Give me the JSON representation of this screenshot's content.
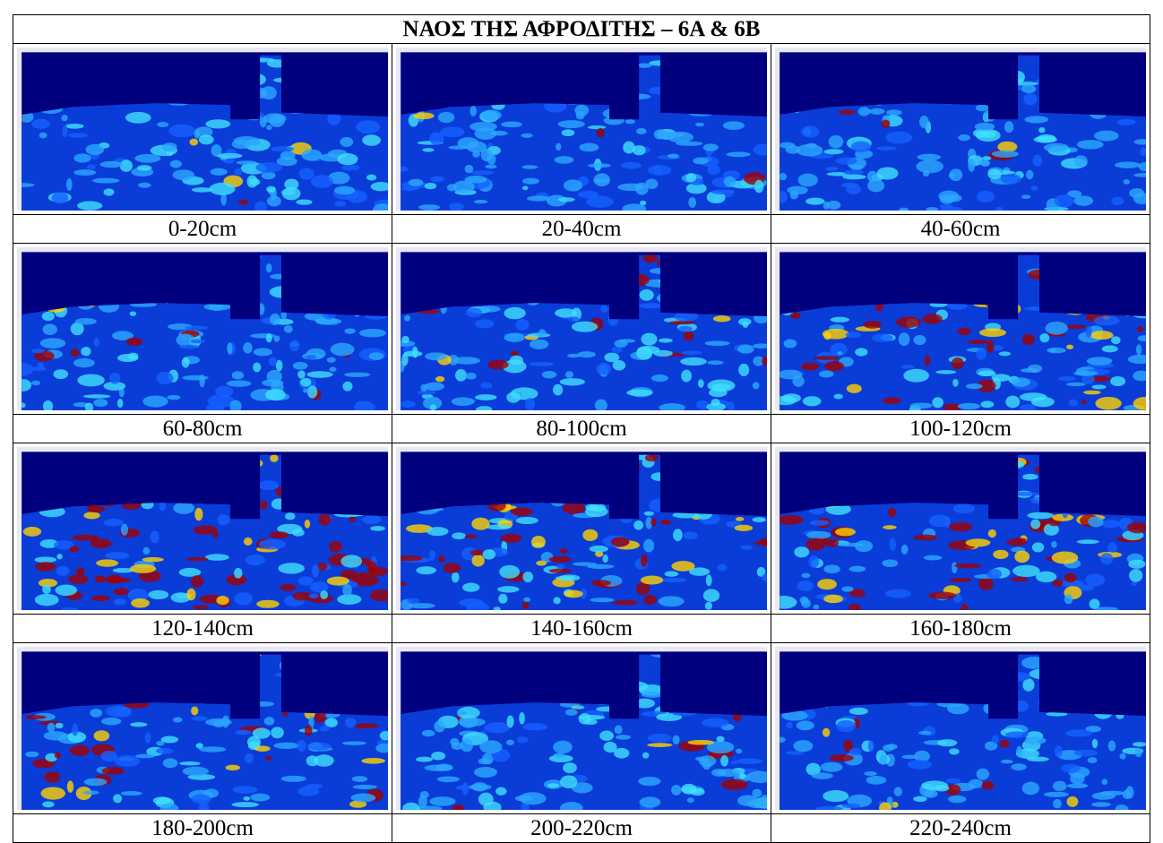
{
  "title": "ΝΑΟΣ ΤΗΣ ΑΦΡΟΔΙΤΗΣ – 6Α & 6Β",
  "slices": [
    {
      "label": "0-20cm"
    },
    {
      "label": "20-40cm"
    },
    {
      "label": "40-60cm"
    },
    {
      "label": "60-80cm"
    },
    {
      "label": "80-100cm"
    },
    {
      "label": "100-120cm"
    },
    {
      "label": "120-140cm"
    },
    {
      "label": "140-160cm"
    },
    {
      "label": "160-180cm"
    },
    {
      "label": "180-200cm"
    },
    {
      "label": "200-220cm"
    },
    {
      "label": "220-240cm"
    }
  ]
}
